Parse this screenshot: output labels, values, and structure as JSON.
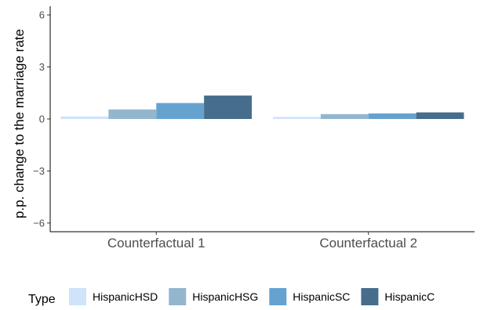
{
  "chart_data": {
    "type": "bar",
    "categories": [
      "Counterfactual 1",
      "Counterfactual 2"
    ],
    "series": [
      {
        "name": "HispanicHSD",
        "color": "#cfe3fb",
        "values": [
          0.15,
          0.12
        ]
      },
      {
        "name": "HispanicHSG",
        "color": "#93b6cf",
        "values": [
          0.55,
          0.28
        ]
      },
      {
        "name": "HispanicSC",
        "color": "#66a2d0",
        "values": [
          0.92,
          0.32
        ]
      },
      {
        "name": "HispanicC",
        "color": "#466d8c",
        "values": [
          1.35,
          0.38
        ]
      }
    ],
    "ylabel": "p.p. change to the marriage rate",
    "ylim": [
      -6.5,
      6.5
    ],
    "yticks": [
      -6,
      -3,
      0,
      3,
      6
    ],
    "grid": false,
    "legend_title": "Type",
    "legend_position": "bottom"
  }
}
